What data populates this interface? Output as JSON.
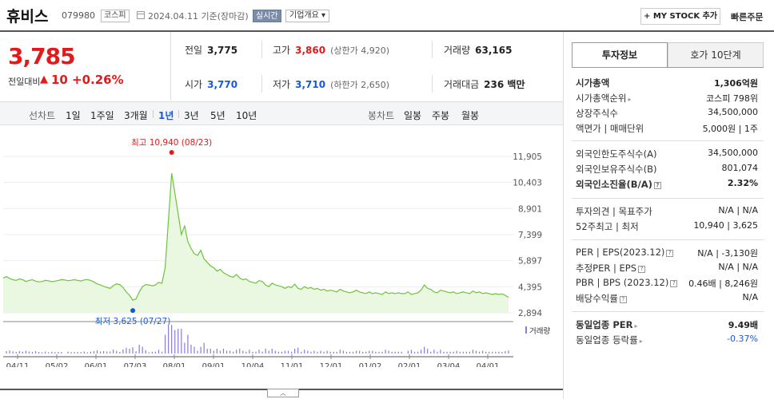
{
  "header": {
    "stock_name": "휴비스",
    "stock_code": "079980",
    "market": "코스피",
    "date_text": "2024.04.11  기준(장마감)",
    "realtime_label": "실시간",
    "company_label": "기업개요 ▾",
    "mystock_label": "MY STOCK 추가",
    "quick_order_label": "빠른주문"
  },
  "price": {
    "current": "3,785",
    "diff_label": "전일대비",
    "diff_arrow": "▲",
    "diff_value": "10",
    "diff_pct": "+0.26%"
  },
  "quote": {
    "prev_label": "전일",
    "prev_value": "3,775",
    "high_label": "고가",
    "high_value": "3,860",
    "upper_limit": "(상한가 4,920)",
    "volume_label": "거래량",
    "volume_value": "63,165",
    "open_label": "시가",
    "open_value": "3,770",
    "low_label": "저가",
    "low_value": "3,710",
    "lower_limit": "(하한가 2,650)",
    "amount_label": "거래대금",
    "amount_value": "236 백만"
  },
  "periods": {
    "line_label": "선차트",
    "line_items": [
      "1일",
      "1주일",
      "3개월",
      "1년",
      "3년",
      "5년",
      "10년"
    ],
    "selected": "1년",
    "candle_label": "봉차트",
    "candle_items": [
      "일봉",
      "주봉",
      "월봉"
    ]
  },
  "chart_data": {
    "type": "area",
    "y_ticks": [
      "11,905",
      "10,403",
      "8,901",
      "7,399",
      "5,897",
      "4,395",
      "2,894"
    ],
    "x_ticks": [
      "04/11",
      "05/02",
      "06/01",
      "07/03",
      "08/01",
      "09/01",
      "10/04",
      "11/01",
      "12/01",
      "01/02",
      "02/01",
      "03/04",
      "04/01"
    ],
    "ylim": [
      2894,
      11905
    ],
    "values": [
      4900,
      4980,
      4870,
      4800,
      4760,
      4850,
      4800,
      4700,
      4760,
      4800,
      4720,
      4680,
      4700,
      4760,
      4740,
      4690,
      4720,
      4760,
      4800,
      4790,
      4740,
      4770,
      4800,
      4760,
      4730,
      4790,
      4810,
      4760,
      4680,
      4560,
      4500,
      4420,
      4360,
      4300,
      4460,
      4560,
      4520,
      4350,
      4100,
      3900,
      3625,
      3700,
      4100,
      4400,
      4520,
      4500,
      4450,
      4500,
      4650,
      4600,
      5500,
      8200,
      10940,
      9800,
      8600,
      7400,
      7900,
      7000,
      6600,
      6300,
      6200,
      6500,
      6000,
      5800,
      5600,
      5500,
      5300,
      5400,
      5200,
      5100,
      5000,
      4950,
      5100,
      4900,
      4800,
      4850,
      4700,
      4650,
      4600,
      4750,
      4700,
      4500,
      4400,
      4600,
      4500,
      4450,
      4400,
      4300,
      4400,
      4350,
      4550,
      4300,
      4250,
      4400,
      4300,
      4350,
      4250,
      4300,
      4200,
      4250,
      4150,
      4200,
      4150,
      4100,
      4250,
      4150,
      4100,
      4050,
      4100,
      4200,
      4100,
      4050,
      4000,
      4100,
      4000,
      4050,
      4000,
      3950,
      4100,
      4000,
      4050,
      4000,
      4050,
      4000,
      4000,
      4100,
      3950,
      4000,
      4050,
      4200,
      4500,
      4300,
      4250,
      4100,
      4050,
      4200,
      4150,
      4100,
      4050,
      4100,
      4000,
      4050,
      4100,
      4050,
      4000,
      4150,
      4050,
      4100,
      4000,
      4050,
      4000,
      3950,
      4000,
      3950,
      3985,
      3900,
      3785
    ],
    "high_annotation": "최고  10,940 (08/23)",
    "low_annotation": "최저  3,625 (07/27)",
    "volume_legend": "거래량",
    "colors": {
      "line": "#6fc23f",
      "fill": "#eaf7e1",
      "high": "#e21a1a",
      "low": "#1a59d6",
      "volume": "#8b7cd8"
    }
  },
  "invest": {
    "tab_active": "투자정보",
    "tab_inactive": "호가 10단계",
    "rows": [
      {
        "k": "시가총액",
        "v": "1,306억원",
        "bold": true
      },
      {
        "k": "시가총액순위",
        "v": "코스피 798위",
        "arrow": true
      },
      {
        "k": "상장주식수",
        "v": "34,500,000"
      },
      {
        "k": "액면가 | 매매단위",
        "v": "5,000원 | 1주"
      },
      {
        "k": "외국인한도주식수(A)",
        "v": "34,500,000"
      },
      {
        "k": "외국인보유주식수(B)",
        "v": "801,074"
      },
      {
        "k": "외국인소진율(B/A)",
        "v": "2.32%",
        "bold": true,
        "icon": true
      },
      {
        "k": "투자의견 | 목표주가",
        "v": "N/A | N/A"
      },
      {
        "k": "52주최고 | 최저",
        "v": "10,940 | 3,625"
      },
      {
        "k": "PER | EPS(2023.12)",
        "v": "N/A | -3,130원",
        "icon": true
      },
      {
        "k": "추정PER | EPS",
        "v": "N/A | N/A",
        "icon": true
      },
      {
        "k": "PBR | BPS (2023.12)",
        "v": "0.46배 | 8,246원",
        "icon": true
      },
      {
        "k": "배당수익률",
        "v": "N/A",
        "icon": true
      },
      {
        "k": "동일업종 PER",
        "v": "9.49배",
        "bold": true,
        "arrow": true
      },
      {
        "k": "동일업종 등락률",
        "v": "-0.37%",
        "arrow": true,
        "blue": true
      }
    ]
  }
}
